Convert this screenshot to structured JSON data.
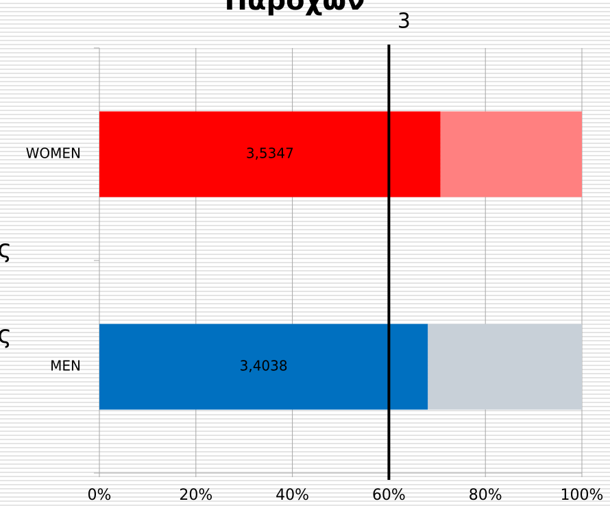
{
  "chart_data": {
    "type": "stacked-bar-horizontal",
    "title": "Παροχών",
    "side_fragments": [
      "ς",
      "ς"
    ],
    "categories": [
      "WOMEN",
      "MEN"
    ],
    "series": [
      {
        "colors": [
          "#ff0000",
          "#0070c0"
        ],
        "values": [
          3.5347,
          3.4038
        ],
        "value_labels": [
          "3,5347",
          "3,4038"
        ]
      },
      {
        "colors": [
          "#ff8080",
          "#c8d0d8"
        ],
        "values": [
          1.4653,
          1.5962
        ]
      }
    ],
    "xlim": [
      0,
      5
    ],
    "xticks": [
      {
        "value": 0,
        "label": "0%"
      },
      {
        "value": 1,
        "label": "20%"
      },
      {
        "value": 2,
        "label": "40%"
      },
      {
        "value": 3,
        "label": "60%"
      },
      {
        "value": 4,
        "label": "80%"
      },
      {
        "value": 5,
        "label": "100%"
      }
    ],
    "reference_line": {
      "value": 3,
      "label": "3",
      "color": "#000000"
    },
    "grid": true
  }
}
